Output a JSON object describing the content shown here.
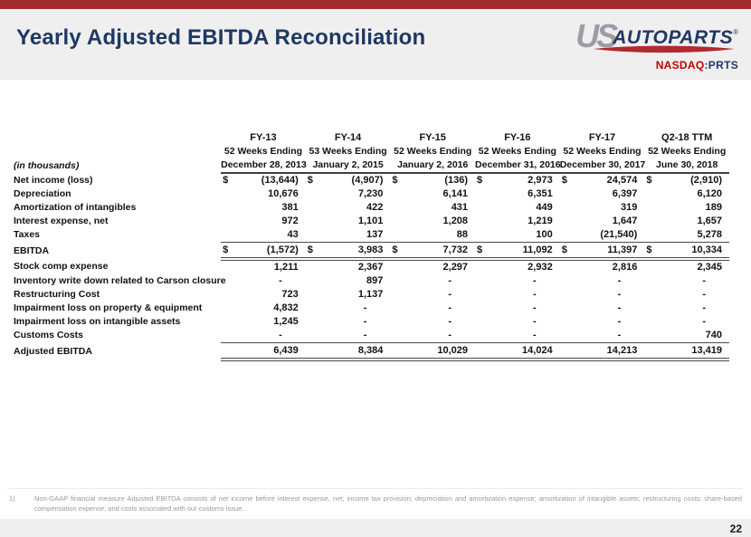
{
  "slide": {
    "title": "Yearly Adjusted EBITDA Reconciliation",
    "page_number": "22"
  },
  "logo": {
    "us": "US",
    "autoparts": "AUTOPARTS",
    "reg": "®",
    "ticker_label": "NASDAQ",
    "ticker_value": ":PRTS"
  },
  "colors": {
    "top_bar_red": "#A32C2C",
    "title_navy": "#1F3864",
    "band_gray": "#F0EFEF",
    "logo_gray": "#9C9CA6",
    "nasdaq_red": "#C00000",
    "swoosh_red": "#B02A30",
    "table_rule": "#4A4A4A",
    "footnote_gray": "#999999"
  },
  "table": {
    "units_label": "(in thousands)",
    "columns": [
      {
        "fy": "FY-13",
        "weeks": "52 Weeks Ending",
        "date": "December 28, 2013"
      },
      {
        "fy": "FY-14",
        "weeks": "53 Weeks Ending",
        "date": "January 2, 2015"
      },
      {
        "fy": "FY-15",
        "weeks": "52 Weeks Ending",
        "date": "January 2, 2016"
      },
      {
        "fy": "FY-16",
        "weeks": "52 Weeks Ending",
        "date": "December 31, 2016"
      },
      {
        "fy": "FY-17",
        "weeks": "52 Weeks Ending",
        "date": "December 30, 2017"
      },
      {
        "fy": "Q2-18 TTM",
        "weeks": "52 Weeks Ending",
        "date": "June 30, 2018"
      }
    ],
    "rows": [
      {
        "label": "Net income (loss)",
        "dollar": true,
        "style": "normal",
        "values": [
          "(13,644)",
          "(4,907)",
          "(136)",
          "2,973",
          "24,574",
          "(2,910)"
        ]
      },
      {
        "label": "Depreciation",
        "dollar": false,
        "style": "normal",
        "values": [
          "10,676",
          "7,230",
          "6,141",
          "6,351",
          "6,397",
          "6,120"
        ]
      },
      {
        "label": "Amortization of intangibles",
        "dollar": false,
        "style": "normal",
        "values": [
          "381",
          "422",
          "431",
          "449",
          "319",
          "189"
        ]
      },
      {
        "label": "Interest expense, net",
        "dollar": false,
        "style": "normal",
        "values": [
          "972",
          "1,101",
          "1,208",
          "1,219",
          "1,647",
          "1,657"
        ]
      },
      {
        "label": "Taxes",
        "dollar": false,
        "style": "normal",
        "values": [
          "43",
          "137",
          "88",
          "100",
          "(21,540)",
          "5,278"
        ]
      },
      {
        "label": "EBITDA",
        "dollar": true,
        "style": "subtotal",
        "values": [
          "(1,572)",
          "3,983",
          "7,732",
          "11,092",
          "11,397",
          "10,334"
        ]
      },
      {
        "label": "Stock comp expense",
        "dollar": false,
        "style": "normal",
        "values": [
          "1,211",
          "2,367",
          "2,297",
          "2,932",
          "2,816",
          "2,345"
        ]
      },
      {
        "label": "Inventory write down related to Carson closure",
        "dollar": false,
        "style": "normal",
        "values": [
          "-",
          "897",
          "-",
          "-",
          "-",
          "-"
        ]
      },
      {
        "label": "Restructuring Cost",
        "dollar": false,
        "style": "normal",
        "values": [
          "723",
          "1,137",
          "-",
          "-",
          "-",
          "-"
        ]
      },
      {
        "label": "Impairment loss on property  & equipment",
        "dollar": false,
        "style": "normal",
        "values": [
          "4,832",
          "-",
          "-",
          "-",
          "-",
          "-"
        ]
      },
      {
        "label": "Impairment loss on intangible assets",
        "dollar": false,
        "style": "normal",
        "values": [
          "1,245",
          "-",
          "-",
          "-",
          "-",
          "-"
        ]
      },
      {
        "label": "Customs Costs",
        "dollar": false,
        "style": "normal",
        "values": [
          "-",
          "-",
          "-",
          "-",
          "-",
          "740"
        ]
      },
      {
        "label": "Adjusted EBITDA",
        "dollar": false,
        "style": "total",
        "values": [
          "6,439",
          "8,384",
          "10,029",
          "14,024",
          "14,213",
          "13,419"
        ]
      }
    ]
  },
  "footnote": {
    "marker": "1)",
    "text": "Non-GAAP financial measure Adjusted EBITDA consists of net income before interest expense, net;  income tax provision; depreciation and amortization expense; amortization of intangible assets; restructuring costs; share-based compensation expense; and costs associated with our customs issue."
  }
}
